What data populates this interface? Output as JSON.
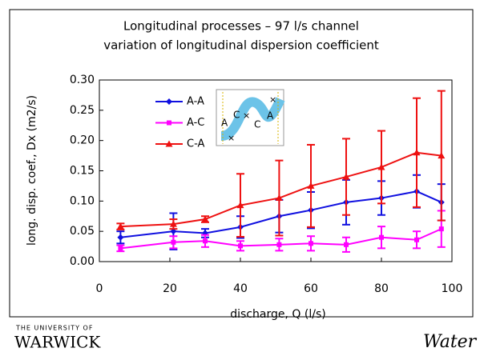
{
  "chart_data": {
    "type": "line",
    "title": "Longitudinal processes – 97 l/s channel",
    "subtitle": "variation of longitudinal dispersion coefficient",
    "x_label": "discharge, Q (l/s)",
    "y_label": "long. disp. coef., Dx (m2/s)",
    "x": [
      6,
      21,
      30,
      40,
      51,
      60,
      70,
      80,
      90,
      97
    ],
    "series": [
      {
        "name": "A-A",
        "color": "#1010e0",
        "marker": "diamond",
        "values": [
          0.04,
          0.05,
          0.047,
          0.057,
          0.075,
          0.085,
          0.098,
          0.105,
          0.116,
          0.098
        ],
        "errors": [
          0.01,
          0.03,
          0.007,
          0.018,
          0.027,
          0.03,
          0.037,
          0.028,
          0.027,
          0.03
        ]
      },
      {
        "name": "A-C",
        "color": "#ff00ff",
        "marker": "square",
        "values": [
          0.022,
          0.032,
          0.034,
          0.026,
          0.028,
          0.03,
          0.028,
          0.04,
          0.036,
          0.054
        ],
        "errors": [
          0.005,
          0.01,
          0.01,
          0.008,
          0.01,
          0.012,
          0.012,
          0.018,
          0.014,
          0.03
        ]
      },
      {
        "name": "C-A",
        "color": "#ee1111",
        "marker": "triangle",
        "values": [
          0.058,
          0.062,
          0.07,
          0.093,
          0.105,
          0.125,
          0.14,
          0.156,
          0.18,
          0.175
        ],
        "errors": [
          0.005,
          0.008,
          0.005,
          0.052,
          0.062,
          0.068,
          0.063,
          0.06,
          0.09,
          0.107
        ]
      }
    ],
    "xlim": [
      0,
      100
    ],
    "xticks": [
      0,
      20,
      40,
      60,
      80,
      100
    ],
    "ylim": [
      0,
      0.3
    ],
    "yticks": [
      {
        "value": 0,
        "label": "0.00"
      },
      {
        "value": 0.05,
        "label": "0.05"
      },
      {
        "value": 0.1,
        "label": "0.10"
      },
      {
        "value": 0.15,
        "label": "0.15"
      },
      {
        "value": 0.2,
        "label": "0.20"
      },
      {
        "value": 0.25,
        "label": "0.25"
      },
      {
        "value": 0.3,
        "label": "0.30"
      }
    ],
    "inset_labels": [
      "A",
      "C",
      "C",
      "A"
    ]
  },
  "footer": {
    "university": "THE UNIVERSITY OF",
    "name": "WARWICK",
    "brand": "Water"
  }
}
